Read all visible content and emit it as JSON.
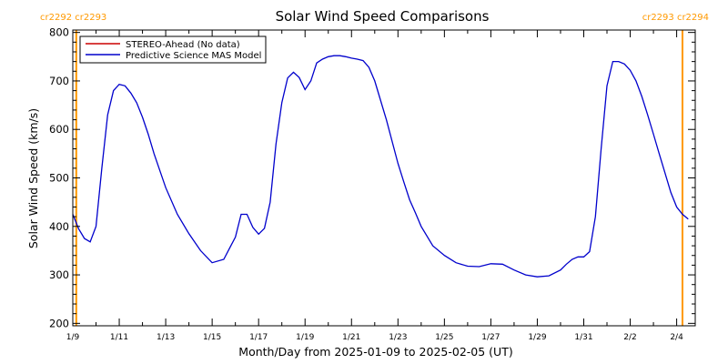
{
  "colors": {
    "model_line": "#0000cc",
    "stereo_line": "#cc0000",
    "rotation_marker": "#ff9900",
    "axis": "#000000"
  },
  "carrington": {
    "left_label": "cr2292 cr2293",
    "right_label": "cr2293 cr2294",
    "left_x": 0.15,
    "right_x": 26.25
  },
  "chart_data": {
    "type": "line",
    "title": "Solar Wind Speed Comparisons",
    "xlabel": "Month/Day from 2025-01-09 to 2025-02-05 (UT)",
    "ylabel": "Solar Wind Speed (km/s)",
    "x_unit": "days since 2025-01-09 00:00 UT",
    "xlim": [
      0,
      26.8
    ],
    "ylim": [
      195,
      805
    ],
    "x_ticks": [
      {
        "x": 0,
        "label": "1/9"
      },
      {
        "x": 2,
        "label": "1/11"
      },
      {
        "x": 4,
        "label": "1/13"
      },
      {
        "x": 6,
        "label": "1/15"
      },
      {
        "x": 8,
        "label": "1/17"
      },
      {
        "x": 10,
        "label": "1/19"
      },
      {
        "x": 12,
        "label": "1/21"
      },
      {
        "x": 14,
        "label": "1/23"
      },
      {
        "x": 16,
        "label": "1/25"
      },
      {
        "x": 18,
        "label": "1/27"
      },
      {
        "x": 20,
        "label": "1/29"
      },
      {
        "x": 22,
        "label": "1/31"
      },
      {
        "x": 24,
        "label": "2/2"
      },
      {
        "x": 26,
        "label": "2/4"
      }
    ],
    "y_ticks": [
      {
        "y": 200,
        "label": "200"
      },
      {
        "y": 300,
        "label": "300"
      },
      {
        "y": 400,
        "label": "400"
      },
      {
        "y": 500,
        "label": "500"
      },
      {
        "y": 600,
        "label": "600"
      },
      {
        "y": 700,
        "label": "700"
      },
      {
        "y": 800,
        "label": "800"
      }
    ],
    "legend": {
      "placement": "top-left",
      "entries": [
        "STEREO-Ahead (No data)",
        "Predictive Science MAS Model"
      ]
    },
    "series": [
      {
        "name": "STEREO-Ahead (No data)",
        "x": [],
        "y": []
      },
      {
        "name": "Predictive Science MAS Model",
        "x": [
          0.0,
          0.25,
          0.5,
          0.75,
          1.0,
          1.25,
          1.5,
          1.75,
          2.0,
          2.25,
          2.5,
          2.75,
          3.0,
          3.25,
          3.5,
          4.0,
          4.5,
          5.0,
          5.5,
          6.0,
          6.5,
          7.0,
          7.25,
          7.5,
          7.75,
          8.0,
          8.25,
          8.5,
          8.75,
          9.0,
          9.25,
          9.5,
          9.75,
          10.0,
          10.25,
          10.5,
          10.75,
          11.0,
          11.25,
          11.5,
          11.75,
          12.0,
          12.25,
          12.5,
          12.75,
          13.0,
          13.5,
          14.0,
          14.25,
          14.5,
          14.75,
          15.0,
          15.5,
          16.0,
          16.5,
          17.0,
          17.5,
          18.0,
          18.5,
          19.0,
          19.5,
          20.0,
          20.5,
          21.0,
          21.25,
          21.5,
          21.75,
          22.0,
          22.25,
          22.5,
          22.75,
          23.0,
          23.25,
          23.5,
          23.75,
          24.0,
          24.25,
          24.5,
          24.75,
          25.0,
          25.25,
          25.5,
          25.75,
          26.0,
          26.25,
          26.5
        ],
        "y": [
          425,
          395,
          375,
          368,
          400,
          520,
          630,
          680,
          693,
          690,
          675,
          655,
          625,
          590,
          550,
          480,
          425,
          385,
          350,
          325,
          332,
          378,
          425,
          425,
          398,
          384,
          396,
          450,
          570,
          655,
          706,
          718,
          707,
          682,
          700,
          737,
          745,
          750,
          752,
          752,
          750,
          747,
          745,
          742,
          728,
          700,
          620,
          530,
          492,
          455,
          428,
          400,
          360,
          340,
          325,
          318,
          317,
          323,
          322,
          310,
          300,
          296,
          298,
          310,
          322,
          332,
          337,
          337,
          348,
          420,
          560,
          690,
          740,
          740,
          735,
          722,
          700,
          668,
          630,
          590,
          550,
          510,
          470,
          440,
          425,
          415
        ]
      }
    ]
  }
}
